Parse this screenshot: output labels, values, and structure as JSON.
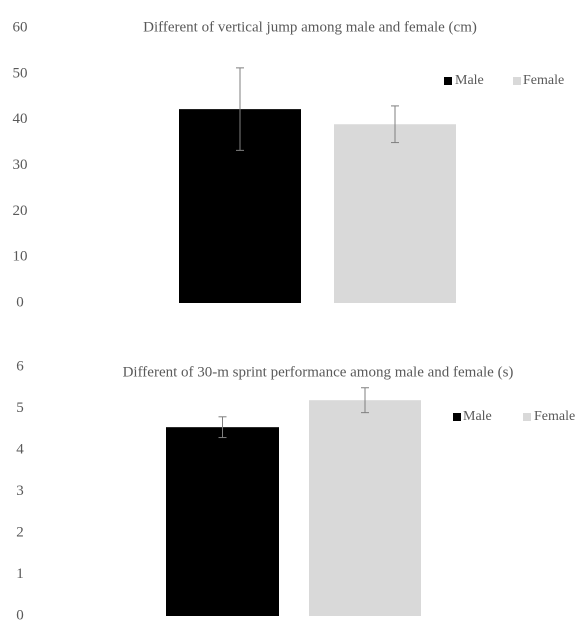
{
  "chart_data": [
    {
      "type": "bar",
      "title": "Different of vertical jump among male and female (cm)",
      "categories": [
        ""
      ],
      "series": [
        {
          "name": "Male",
          "values": [
            42.3
          ],
          "error": [
            9.0
          ],
          "color": "#000000"
        },
        {
          "name": "Female",
          "values": [
            39.0
          ],
          "error": [
            4.0
          ],
          "color": "#d9d9d9"
        }
      ],
      "ylim": [
        0,
        60
      ],
      "yticks": [
        0,
        10,
        20,
        30,
        40,
        50,
        60
      ],
      "grid": false,
      "legend": "top-right"
    },
    {
      "type": "bar",
      "title": "Different of 30-m sprint performance among male and female (s)",
      "categories": [
        ""
      ],
      "series": [
        {
          "name": "Male",
          "values": [
            4.55
          ],
          "error": [
            0.25
          ],
          "color": "#000000"
        },
        {
          "name": "Female",
          "values": [
            5.2
          ],
          "error": [
            0.3
          ],
          "color": "#d9d9d9"
        }
      ],
      "ylim": [
        0,
        6
      ],
      "yticks": [
        0,
        1,
        2,
        3,
        4,
        5,
        6
      ],
      "grid": false,
      "legend": "top-right"
    }
  ]
}
